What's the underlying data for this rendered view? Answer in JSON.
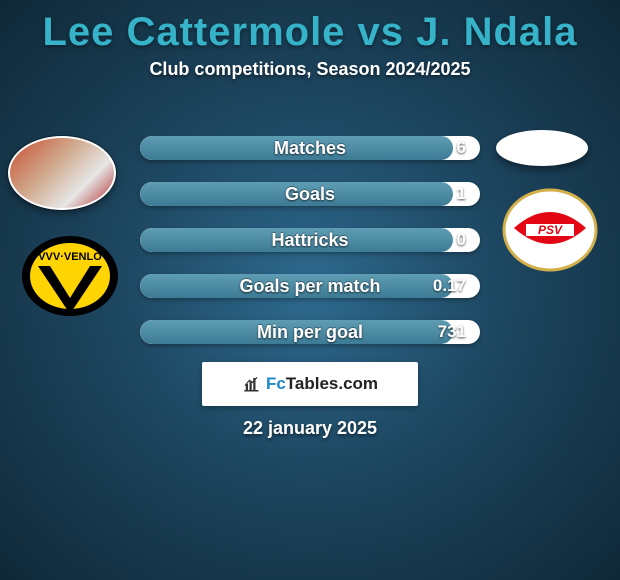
{
  "header": {
    "title": "Lee Cattermole vs J. Ndala",
    "subtitle": "Club competitions, Season 2024/2025"
  },
  "colors": {
    "title": "#36b3c9",
    "bar_fill": "#4f8ea7",
    "background_inner": "#2e6a8e",
    "background_outer": "#0f2837"
  },
  "stats": [
    {
      "label": "Matches",
      "value": "6",
      "fill_pct": 92
    },
    {
      "label": "Goals",
      "value": "1",
      "fill_pct": 92
    },
    {
      "label": "Hattricks",
      "value": "0",
      "fill_pct": 92
    },
    {
      "label": "Goals per match",
      "value": "0.17",
      "fill_pct": 92
    },
    {
      "label": "Min per goal",
      "value": "731",
      "fill_pct": 92
    }
  ],
  "avatars": {
    "left_player": "lee-cattermole",
    "right_player": "j-ndala",
    "left_club": "vvv-venlo",
    "right_club": "psv"
  },
  "brand": {
    "name_prefix": "Fc",
    "name_suffix": "Tables.com"
  },
  "date": "22 january 2025"
}
